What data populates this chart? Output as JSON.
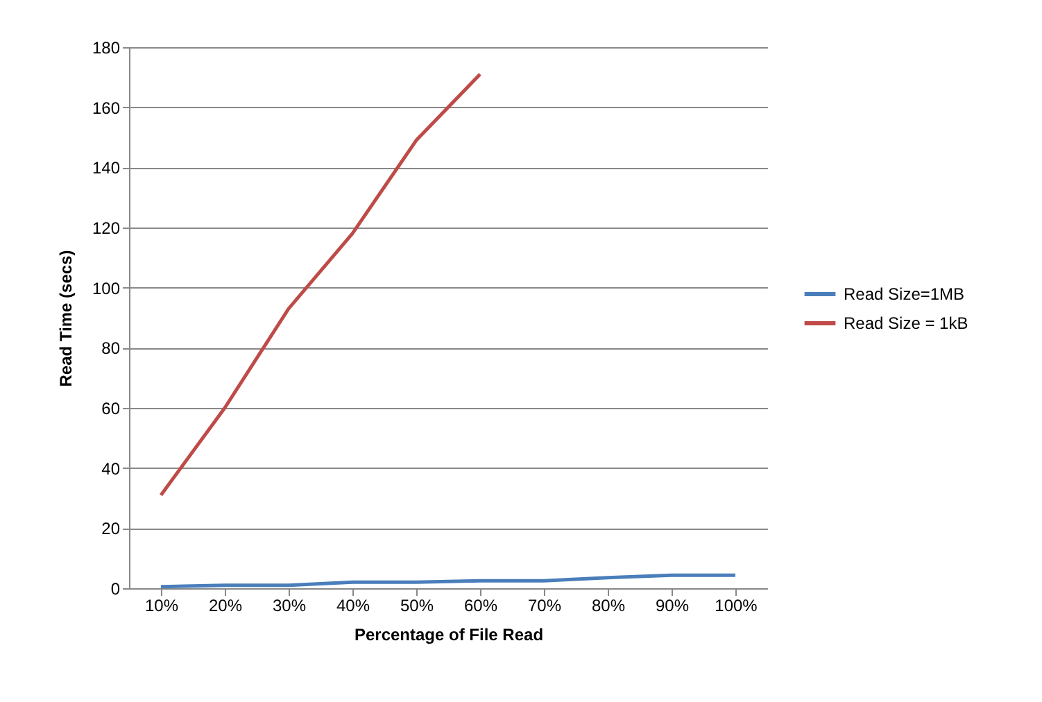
{
  "chart_data": {
    "type": "line",
    "xlabel": "Percentage of File Read",
    "ylabel": "Read Time (secs)",
    "categories": [
      "10%",
      "20%",
      "30%",
      "40%",
      "50%",
      "60%",
      "70%",
      "80%",
      "90%",
      "100%"
    ],
    "series": [
      {
        "name": "Read Size=1MB",
        "color": "#4a7ebb",
        "values": [
          0.5,
          1,
          1,
          2,
          2,
          2.5,
          2.5,
          3.5,
          4.3,
          4.3
        ]
      },
      {
        "name": "Read Size = 1kB",
        "color": "#be4b48",
        "values": [
          31,
          60,
          93,
          118,
          149,
          171,
          null,
          null,
          null,
          null
        ]
      }
    ],
    "ylim": [
      0,
      180
    ],
    "yticks": [
      0,
      20,
      40,
      60,
      80,
      100,
      120,
      140,
      160,
      180
    ],
    "grid": "y",
    "legend": "right",
    "marker": "none",
    "line_style": "solid"
  }
}
